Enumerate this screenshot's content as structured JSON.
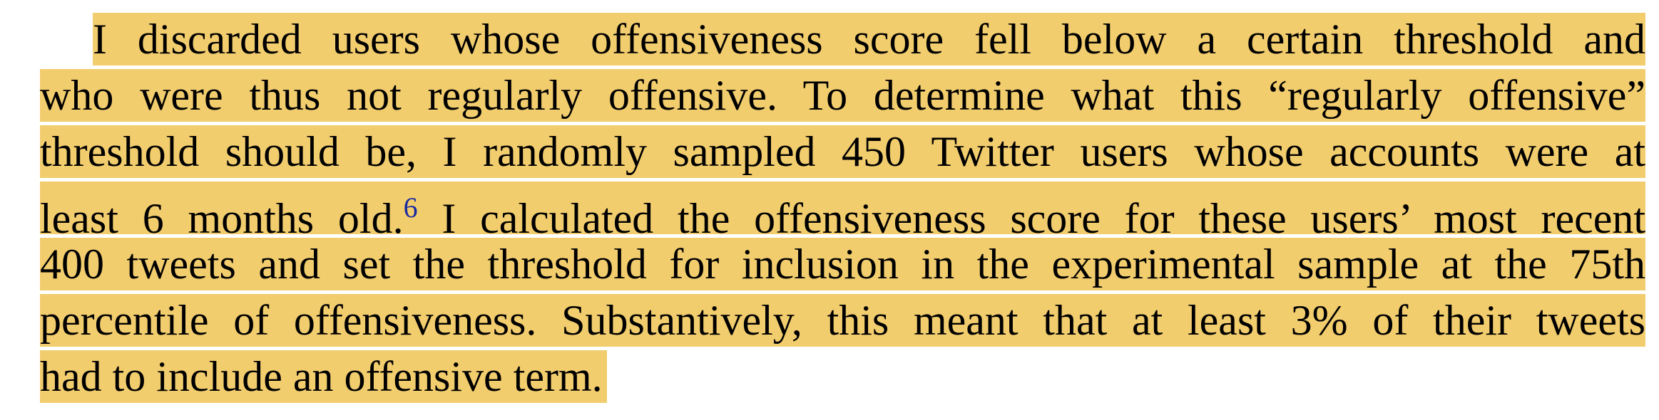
{
  "paragraph": {
    "lines": [
      "I discarded users whose offensiveness score fell below a certain threshold and",
      "who were thus not regularly offensive. To determine what this “regularly offensive”",
      "threshold should be, I randomly sampled 450 Twitter users whose accounts were at",
      "least 6 months old.",
      "I calculated the offensiveness score for these users’ most recent",
      "400 tweets and set the threshold for inclusion in the experimental sample at the 75th",
      "percentile of offensiveness. Substantively, this meant that at least 3% of their tweets",
      "had to include an offensive term."
    ],
    "footnote": "6"
  }
}
